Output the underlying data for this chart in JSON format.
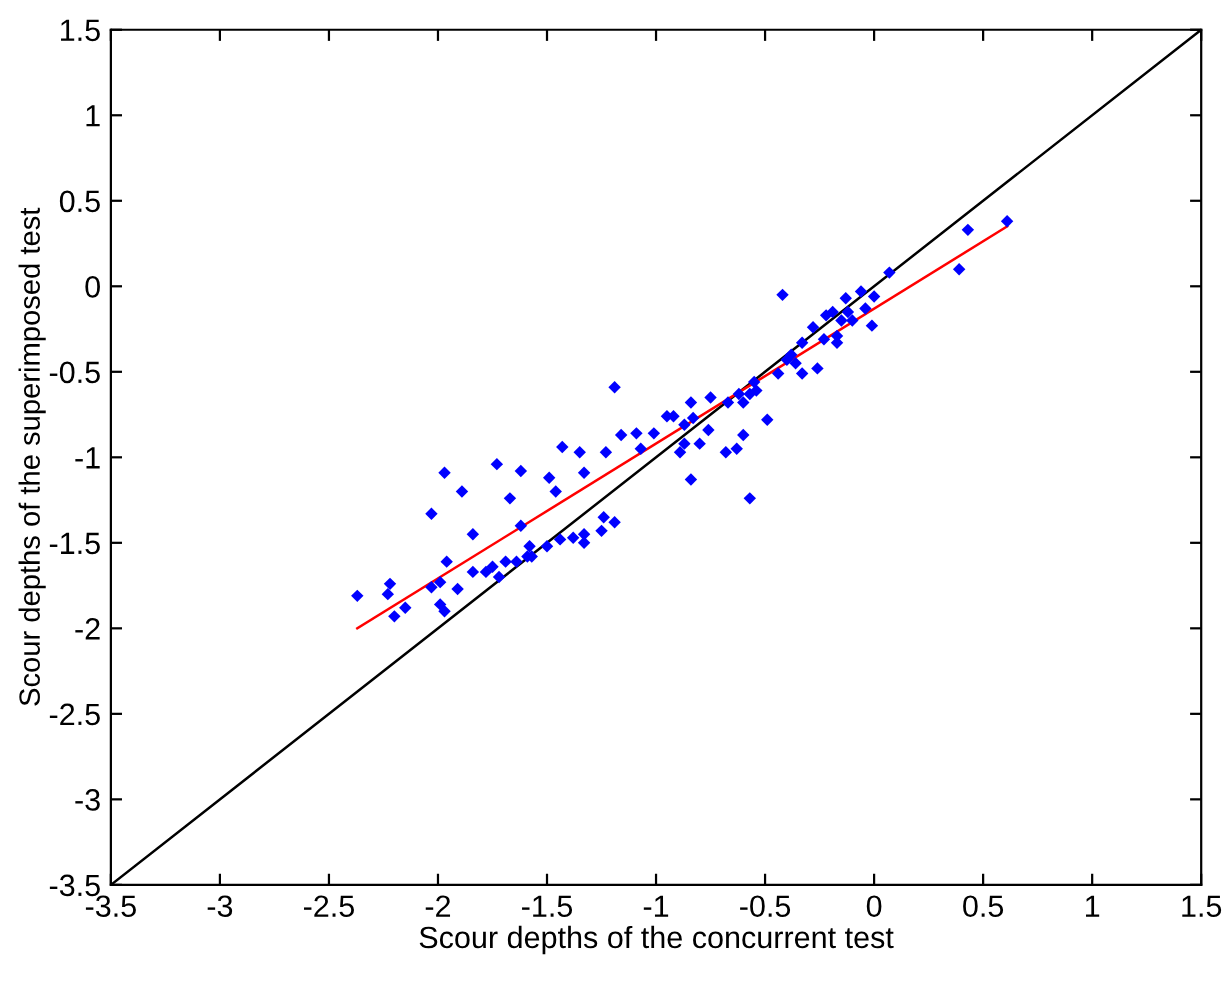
{
  "chart_data": {
    "type": "scatter",
    "xlabel": "Scour depths of the concurrent test",
    "ylabel": "Scour depths of the superimposed test",
    "xlim": [
      -3.5,
      1.5
    ],
    "ylim": [
      -3.5,
      1.5
    ],
    "xticks": [
      -3.5,
      -3,
      -2.5,
      -2,
      -1.5,
      -1,
      -0.5,
      0,
      0.5,
      1,
      1.5
    ],
    "yticks": [
      -3.5,
      -3,
      -2.5,
      -2,
      -1.5,
      -1,
      -0.5,
      0,
      0.5,
      1,
      1.5
    ],
    "grid": false,
    "legend": false,
    "series": [
      {
        "type": "line",
        "color": "#000000",
        "marker": "none",
        "line_style": "solid",
        "x": [
          -3.5,
          1.5
        ],
        "values": [
          -3.5,
          1.5
        ]
      },
      {
        "type": "line",
        "color": "#ff0000",
        "marker": "none",
        "line_style": "solid",
        "x": [
          -2.37,
          0.61
        ],
        "values": [
          -2.0,
          0.35
        ]
      },
      {
        "color": "#0000ff",
        "marker": "diamond",
        "x": [
          -2.37,
          -2.22,
          -2.23,
          -2.2,
          -2.15,
          -2.03,
          -2.03,
          -1.97,
          -1.96,
          -1.99,
          -1.97,
          -1.99,
          -1.91,
          -1.89,
          -1.84,
          -1.84,
          -1.78,
          -1.73,
          -1.75,
          -1.72,
          -1.69,
          -1.67,
          -1.62,
          -1.62,
          -1.64,
          -1.59,
          -1.58,
          -1.57,
          -1.49,
          -1.46,
          -1.5,
          -1.44,
          -1.43,
          -1.38,
          -1.35,
          -1.33,
          -1.33,
          -1.33,
          -1.25,
          -1.24,
          -1.23,
          -1.19,
          -1.19,
          -1.16,
          -1.09,
          -1.07,
          -1.01,
          -0.95,
          -0.92,
          -0.89,
          -0.87,
          -0.87,
          -0.84,
          -0.84,
          -0.83,
          -0.8,
          -0.76,
          -0.75,
          -0.68,
          -0.67,
          -0.63,
          -0.62,
          -0.6,
          -0.6,
          -0.57,
          -0.57,
          -0.55,
          -0.54,
          -0.49,
          -0.44,
          -0.42,
          -0.4,
          -0.38,
          -0.36,
          -0.33,
          -0.33,
          -0.28,
          -0.26,
          -0.23,
          -0.22,
          -0.19,
          -0.17,
          -0.17,
          -0.15,
          -0.13,
          -0.12,
          -0.1,
          -0.06,
          -0.04,
          -0.01,
          0.0,
          0.07,
          0.39,
          0.43,
          0.61
        ],
        "values": [
          -1.81,
          -1.74,
          -1.8,
          -1.93,
          -1.88,
          -1.76,
          -1.33,
          -1.09,
          -1.61,
          -1.86,
          -1.9,
          -1.73,
          -1.77,
          -1.2,
          -1.45,
          -1.67,
          -1.67,
          -1.04,
          -1.64,
          -1.7,
          -1.61,
          -1.24,
          -1.4,
          -1.08,
          -1.61,
          -1.58,
          -1.52,
          -1.58,
          -1.12,
          -1.2,
          -1.52,
          -1.48,
          -0.94,
          -1.47,
          -0.97,
          -1.09,
          -1.5,
          -1.45,
          -1.43,
          -1.35,
          -0.97,
          -1.38,
          -0.59,
          -0.87,
          -0.86,
          -0.95,
          -0.86,
          -0.76,
          -0.76,
          -0.97,
          -0.92,
          -0.81,
          -1.13,
          -0.68,
          -0.77,
          -0.92,
          -0.84,
          -0.65,
          -0.97,
          -0.68,
          -0.95,
          -0.63,
          -0.87,
          -0.68,
          -0.63,
          -1.24,
          -0.56,
          -0.61,
          -0.78,
          -0.51,
          -0.05,
          -0.43,
          -0.4,
          -0.45,
          -0.33,
          -0.51,
          -0.24,
          -0.48,
          -0.31,
          -0.17,
          -0.15,
          -0.29,
          -0.33,
          -0.2,
          -0.07,
          -0.15,
          -0.2,
          -0.03,
          -0.13,
          -0.23,
          -0.06,
          0.08,
          0.1,
          0.33,
          0.38
        ]
      }
    ]
  }
}
